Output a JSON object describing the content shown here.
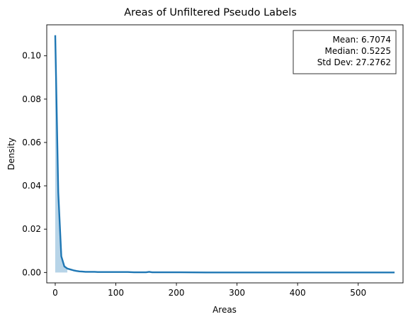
{
  "chart_data": {
    "type": "line",
    "title": "Areas of Unfiltered Pseudo Labels",
    "xlabel": "Areas",
    "ylabel": "Density",
    "xlim": [
      -14,
      574
    ],
    "ylim": [
      -0.0048,
      0.1143
    ],
    "xticks": [
      0,
      100,
      200,
      300,
      400,
      500
    ],
    "yticks": [
      0.0,
      0.02,
      0.04,
      0.06,
      0.08,
      0.1
    ],
    "xtick_labels": [
      "0",
      "100",
      "200",
      "300",
      "400",
      "500"
    ],
    "ytick_labels": [
      "0.00",
      "0.02",
      "0.04",
      "0.06",
      "0.08",
      "0.10"
    ],
    "grid": false,
    "colors": {
      "line": "#1f77b4",
      "fill": "#b7d4e8"
    },
    "series": [
      {
        "x": [
          0,
          5,
          10,
          15,
          20,
          25,
          30,
          35,
          40,
          45,
          50,
          55,
          60,
          65,
          70,
          80,
          90,
          100,
          110,
          120,
          130,
          140,
          150,
          155,
          160,
          170,
          180,
          200,
          250,
          300,
          350,
          400,
          450,
          500,
          560
        ],
        "y": [
          0.1095,
          0.037,
          0.0075,
          0.0028,
          0.0018,
          0.0014,
          0.001,
          0.0007,
          0.0005,
          0.0004,
          0.0003,
          0.0003,
          0.0003,
          0.0003,
          0.0002,
          0.0002,
          0.0002,
          0.0002,
          0.0002,
          0.0002,
          0.0001,
          0.0001,
          0.0001,
          0.0003,
          0.0001,
          0.0001,
          0.0001,
          0.0001,
          0.0,
          0.0,
          0.0,
          0.0,
          0.0,
          0.0,
          0.0
        ]
      }
    ],
    "stats_box": {
      "lines": [
        "Mean: 6.7074",
        "Median: 0.5225",
        "Std Dev: 27.2762"
      ],
      "placement": "top-right"
    }
  }
}
